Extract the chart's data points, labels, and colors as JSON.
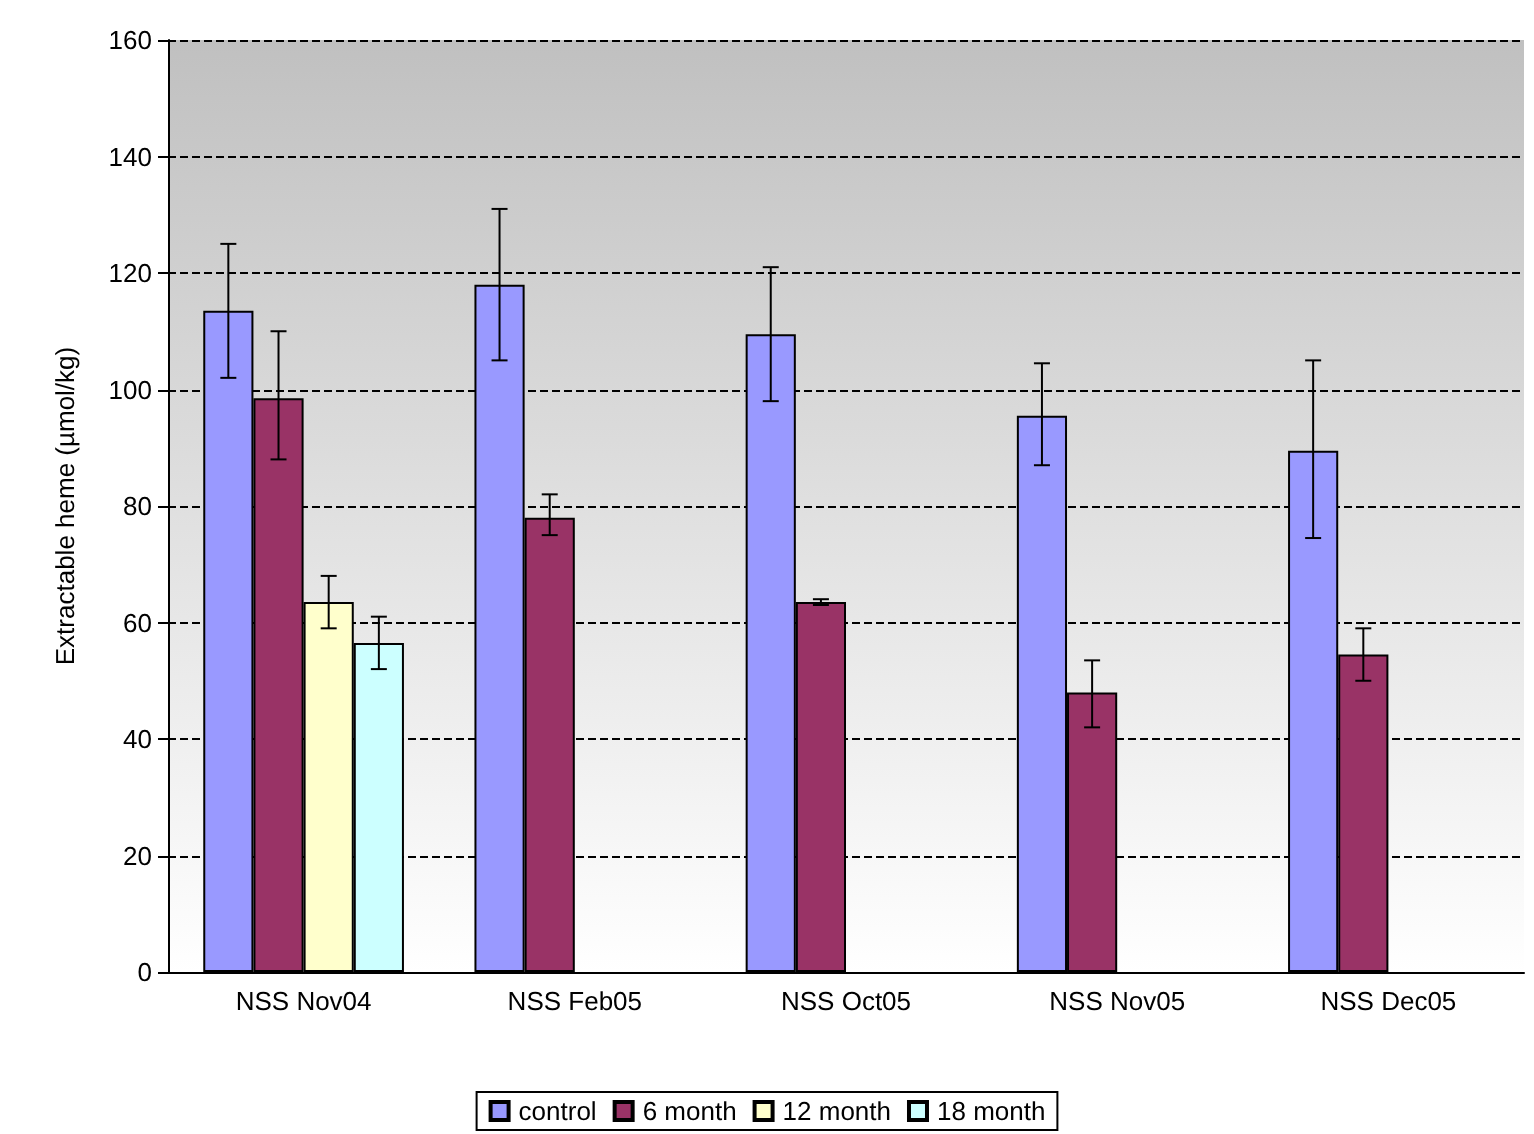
{
  "chart_data": {
    "type": "bar",
    "ylabel": "Extractable heme (µmol/kg)",
    "categories": [
      "NSS Nov04",
      "NSS Feb05",
      "NSS Oct05",
      "NSS Nov05",
      "NSS Dec05"
    ],
    "series": [
      {
        "name": "control",
        "color": "#9999ff",
        "values": [
          113.5,
          118,
          109.5,
          95.5,
          89.5
        ],
        "errors": [
          [
            102,
            125
          ],
          [
            105,
            131
          ],
          [
            98,
            121
          ],
          [
            87,
            104.5
          ],
          [
            74.5,
            105
          ]
        ]
      },
      {
        "name": "6 month",
        "color": "#993366",
        "values": [
          98.5,
          78,
          63.5,
          48,
          54.5
        ],
        "errors": [
          [
            88,
            110
          ],
          [
            75,
            82
          ],
          [
            63,
            64
          ],
          [
            42,
            53.5
          ],
          [
            50,
            59
          ]
        ]
      },
      {
        "name": "12 month",
        "color": "#ffffcc",
        "values": [
          63.5,
          null,
          null,
          null,
          null
        ],
        "errors": [
          [
            59,
            68
          ],
          null,
          null,
          null,
          null
        ]
      },
      {
        "name": "18 month",
        "color": "#ccffff",
        "values": [
          56.5,
          null,
          null,
          null,
          null
        ],
        "errors": [
          [
            52,
            61
          ],
          null,
          null,
          null,
          null
        ]
      }
    ],
    "ylim": [
      0,
      160
    ],
    "yticks": [
      0,
      20,
      40,
      60,
      80,
      100,
      120,
      140,
      160
    ],
    "grid": "y",
    "legend": "bottom"
  }
}
